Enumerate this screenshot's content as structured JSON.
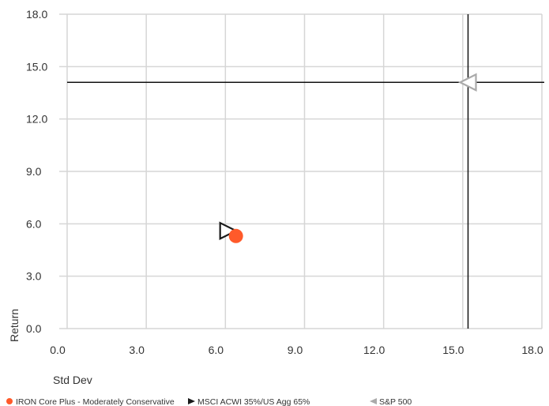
{
  "chart_data": {
    "type": "scatter",
    "xlabel": "Std Dev",
    "ylabel": "Return",
    "xlim": [
      0,
      18
    ],
    "ylim": [
      0,
      18
    ],
    "x_ticks": [
      "0.0",
      "3.0",
      "6.0",
      "9.0",
      "12.0",
      "15.0",
      "18.0"
    ],
    "y_ticks": [
      "0.0",
      "3.0",
      "6.0",
      "9.0",
      "12.0",
      "15.0",
      "18.0"
    ],
    "x_tick_values": [
      0,
      3,
      6,
      9,
      12,
      15,
      18
    ],
    "y_tick_values": [
      0,
      3,
      6,
      9,
      12,
      15,
      18
    ],
    "grid": true,
    "legend_position": "bottom",
    "series": [
      {
        "name": "IRON Core Plus - Moderately Conservative",
        "marker": "circle",
        "color": "#ff5a2a",
        "x": 6.4,
        "y": 5.3
      },
      {
        "name": "MSCI ACWI 35%/US Agg 65%",
        "marker": "triangle-right",
        "color": "#1a1a1a",
        "x": 6.1,
        "y": 5.6
      },
      {
        "name": "S&P 500",
        "marker": "triangle-left",
        "color": "#aaaaaa",
        "x": 15.2,
        "y": 14.1
      }
    ],
    "reference_lines": {
      "x": 15.2,
      "y": 14.1,
      "color": "#111111"
    }
  }
}
